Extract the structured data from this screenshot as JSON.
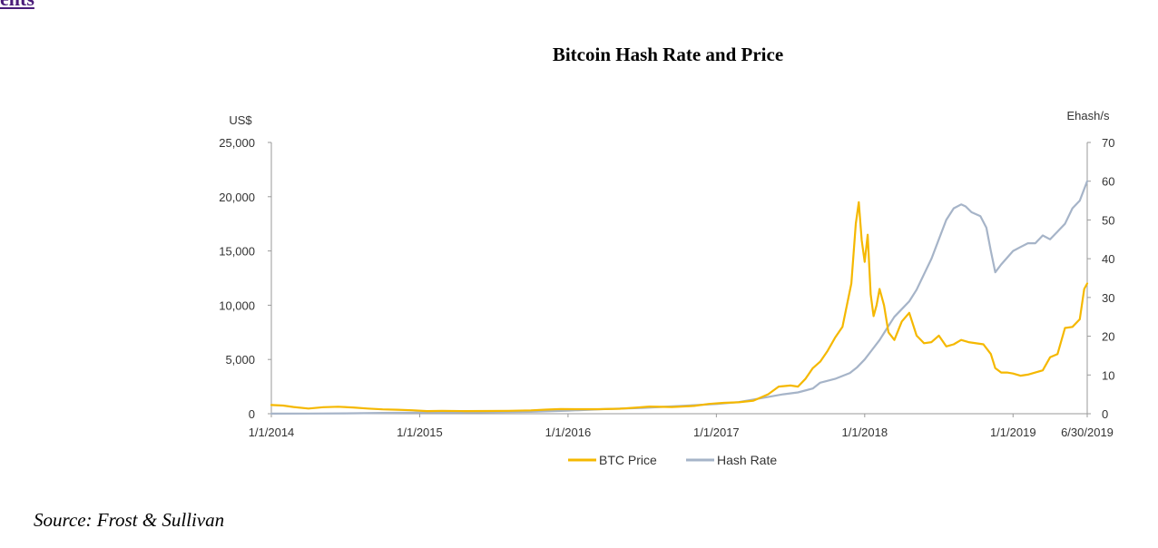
{
  "page": {
    "top_link": "ents",
    "source": "Source: Frost & Sullivan"
  },
  "chart_data": {
    "type": "line",
    "title": "Bitcoin Hash Rate and Price",
    "left_axis_unit": "US$",
    "right_axis_unit": "Ehash/s",
    "left_ylim": [
      0,
      25000
    ],
    "right_ylim": [
      0,
      70
    ],
    "left_ticks": [
      0,
      5000,
      10000,
      15000,
      20000,
      25000
    ],
    "left_tick_labels": [
      "0",
      "5,000",
      "10,000",
      "15,000",
      "20,000",
      "25,000"
    ],
    "right_ticks": [
      0,
      10,
      20,
      30,
      40,
      50,
      60,
      70
    ],
    "right_tick_labels": [
      "0",
      "10",
      "20",
      "30",
      "40",
      "50",
      "60",
      "70"
    ],
    "x_range": [
      2014.0,
      2019.5
    ],
    "x_ticks": [
      2014.0,
      2015.0,
      2016.0,
      2017.0,
      2018.0,
      2019.0,
      2019.5
    ],
    "x_tick_labels": [
      "1/1/2014",
      "1/1/2015",
      "1/1/2016",
      "1/1/2017",
      "1/1/2018",
      "1/1/2019",
      "6/30/2019"
    ],
    "legend_position": "bottom-center",
    "series": [
      {
        "name": "BTC Price",
        "axis": "left",
        "color": "#f5b800",
        "x": [
          2014.0,
          2014.08,
          2014.15,
          2014.25,
          2014.35,
          2014.45,
          2014.55,
          2014.65,
          2014.75,
          2014.85,
          2014.95,
          2015.05,
          2015.15,
          2015.3,
          2015.45,
          2015.6,
          2015.75,
          2015.85,
          2015.95,
          2016.05,
          2016.2,
          2016.35,
          2016.45,
          2016.55,
          2016.7,
          2016.85,
          2016.95,
          2017.05,
          2017.15,
          2017.25,
          2017.35,
          2017.42,
          2017.5,
          2017.55,
          2017.6,
          2017.65,
          2017.7,
          2017.75,
          2017.8,
          2017.85,
          2017.88,
          2017.91,
          2017.94,
          2017.96,
          2017.98,
          2018.0,
          2018.02,
          2018.04,
          2018.06,
          2018.08,
          2018.1,
          2018.13,
          2018.16,
          2018.2,
          2018.25,
          2018.3,
          2018.35,
          2018.4,
          2018.45,
          2018.5,
          2018.55,
          2018.6,
          2018.65,
          2018.7,
          2018.8,
          2018.85,
          2018.88,
          2018.92,
          2018.96,
          2019.0,
          2019.05,
          2019.1,
          2019.15,
          2019.2,
          2019.25,
          2019.3,
          2019.35,
          2019.4,
          2019.45,
          2019.48,
          2019.5
        ],
        "values": [
          800,
          750,
          620,
          480,
          600,
          640,
          580,
          480,
          400,
          370,
          320,
          240,
          260,
          240,
          250,
          270,
          310,
          380,
          430,
          420,
          420,
          460,
          550,
          660,
          620,
          720,
          900,
          1000,
          1050,
          1200,
          1800,
          2500,
          2600,
          2500,
          3200,
          4200,
          4800,
          5800,
          7000,
          8000,
          10000,
          12000,
          17500,
          19500,
          16000,
          14000,
          16500,
          11000,
          9000,
          10000,
          11500,
          10000,
          7500,
          6800,
          8500,
          9300,
          7200,
          6500,
          6600,
          7200,
          6200,
          6400,
          6800,
          6600,
          6400,
          5500,
          4200,
          3800,
          3800,
          3700,
          3500,
          3600,
          3800,
          4000,
          5200,
          5500,
          7900,
          8000,
          8700,
          11500,
          12000
        ]
      },
      {
        "name": "Hash Rate",
        "axis": "right",
        "color": "#a6b4c8",
        "x": [
          2014.0,
          2014.25,
          2014.5,
          2014.75,
          2015.0,
          2015.25,
          2015.5,
          2015.75,
          2016.0,
          2016.25,
          2016.5,
          2016.75,
          2017.0,
          2017.15,
          2017.3,
          2017.45,
          2017.55,
          2017.65,
          2017.7,
          2017.8,
          2017.9,
          2017.95,
          2018.0,
          2018.05,
          2018.1,
          2018.15,
          2018.2,
          2018.25,
          2018.3,
          2018.35,
          2018.4,
          2018.45,
          2018.5,
          2018.55,
          2018.6,
          2018.65,
          2018.68,
          2018.72,
          2018.78,
          2018.82,
          2018.85,
          2018.88,
          2018.92,
          2019.0,
          2019.05,
          2019.1,
          2019.15,
          2019.2,
          2019.25,
          2019.3,
          2019.35,
          2019.4,
          2019.45,
          2019.48,
          2019.5
        ],
        "values": [
          0.02,
          0.05,
          0.1,
          0.2,
          0.3,
          0.35,
          0.4,
          0.5,
          0.8,
          1.2,
          1.5,
          2.0,
          2.5,
          3.0,
          4.0,
          5.0,
          5.5,
          6.5,
          8.0,
          9.0,
          10.5,
          12.0,
          14.0,
          16.5,
          19.0,
          22.0,
          25.0,
          27.0,
          29.0,
          32.0,
          36.0,
          40.0,
          45.0,
          50.0,
          53.0,
          54.0,
          53.5,
          52.0,
          51.0,
          48.0,
          42.0,
          36.5,
          38.5,
          42.0,
          43.0,
          44.0,
          44.0,
          46.0,
          45.0,
          47.0,
          49.0,
          53.0,
          55.0,
          58.0,
          60.0
        ]
      }
    ]
  }
}
